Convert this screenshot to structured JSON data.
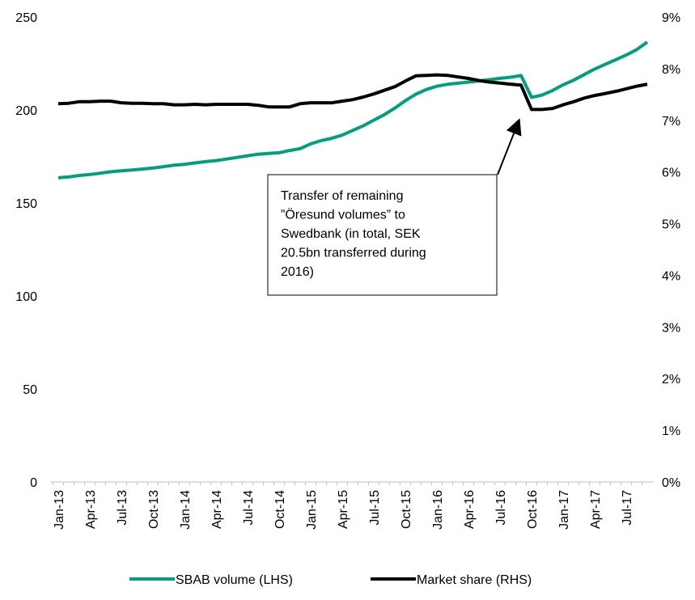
{
  "chart_data": {
    "type": "line",
    "categories": [
      "Jan-13",
      null,
      null,
      "Apr-13",
      null,
      null,
      "Jul-13",
      null,
      null,
      "Oct-13",
      null,
      null,
      "Jan-14",
      null,
      null,
      "Apr-14",
      null,
      null,
      "Jul-14",
      null,
      null,
      "Oct-14",
      null,
      null,
      "Jan-15",
      null,
      null,
      "Apr-15",
      null,
      null,
      "Jul-15",
      null,
      null,
      "Oct-15",
      null,
      null,
      "Jan-16",
      null,
      null,
      "Apr-16",
      null,
      null,
      "Jul-16",
      null,
      null,
      "Oct-16",
      null,
      null,
      "Jan-17",
      null,
      null,
      "Apr-17",
      null,
      null,
      "Jul-17",
      null,
      null
    ],
    "series": [
      {
        "name": "SBAB volume (LHS)",
        "color": "#00a07a",
        "axis": "y",
        "values": [
          163.5,
          164,
          164.8,
          165.3,
          166,
          166.8,
          167.3,
          167.7,
          168.2,
          168.8,
          169.5,
          170.3,
          170.8,
          171.5,
          172.2,
          172.8,
          173.6,
          174.5,
          175.4,
          176.2,
          176.6,
          177,
          178.2,
          179.2,
          181.8,
          183.5,
          184.8,
          186.5,
          189,
          191.5,
          194.5,
          197.5,
          201,
          205,
          208.5,
          211,
          212.8,
          213.8,
          214.4,
          215,
          215.6,
          216.3,
          217,
          217.6,
          218.5,
          206.8,
          208,
          210.5,
          213.5,
          216,
          219,
          222,
          224.5,
          227,
          229.5,
          232.5,
          236.5
        ]
      },
      {
        "name": "Market share (RHS)",
        "color": "#000000",
        "axis": "y2",
        "values": [
          7.32,
          7.33,
          7.36,
          7.36,
          7.37,
          7.37,
          7.34,
          7.33,
          7.33,
          7.32,
          7.32,
          7.3,
          7.3,
          7.31,
          7.3,
          7.31,
          7.31,
          7.31,
          7.31,
          7.29,
          7.26,
          7.26,
          7.26,
          7.32,
          7.34,
          7.34,
          7.34,
          7.37,
          7.4,
          7.45,
          7.51,
          7.58,
          7.65,
          7.76,
          7.86,
          7.87,
          7.88,
          7.87,
          7.84,
          7.81,
          7.77,
          7.74,
          7.72,
          7.7,
          7.68,
          7.21,
          7.21,
          7.23,
          7.3,
          7.36,
          7.43,
          7.48,
          7.52,
          7.56,
          7.61,
          7.66,
          7.7
        ]
      }
    ],
    "ylim": [
      0,
      250
    ],
    "yticks": [
      0,
      50,
      100,
      150,
      200,
      250
    ],
    "y2lim": [
      0,
      9
    ],
    "y2ticks": [
      {
        "value": 0,
        "label": "0%"
      },
      {
        "value": 1,
        "label": "1%"
      },
      {
        "value": 2,
        "label": "2%"
      },
      {
        "value": 3,
        "label": "3%"
      },
      {
        "value": 4,
        "label": "4%"
      },
      {
        "value": 5,
        "label": "5%"
      },
      {
        "value": 6,
        "label": "6%"
      },
      {
        "value": 7,
        "label": "7%"
      },
      {
        "value": 8,
        "label": "8%"
      },
      {
        "value": 9,
        "label": "9%"
      }
    ],
    "annotation": [
      "Transfer of remaining",
      "”Öresund volumes” to",
      "Swedbank (in total, SEK",
      "20.5bn transferred during",
      "2016)"
    ],
    "grid": false,
    "legend": "bottom"
  }
}
